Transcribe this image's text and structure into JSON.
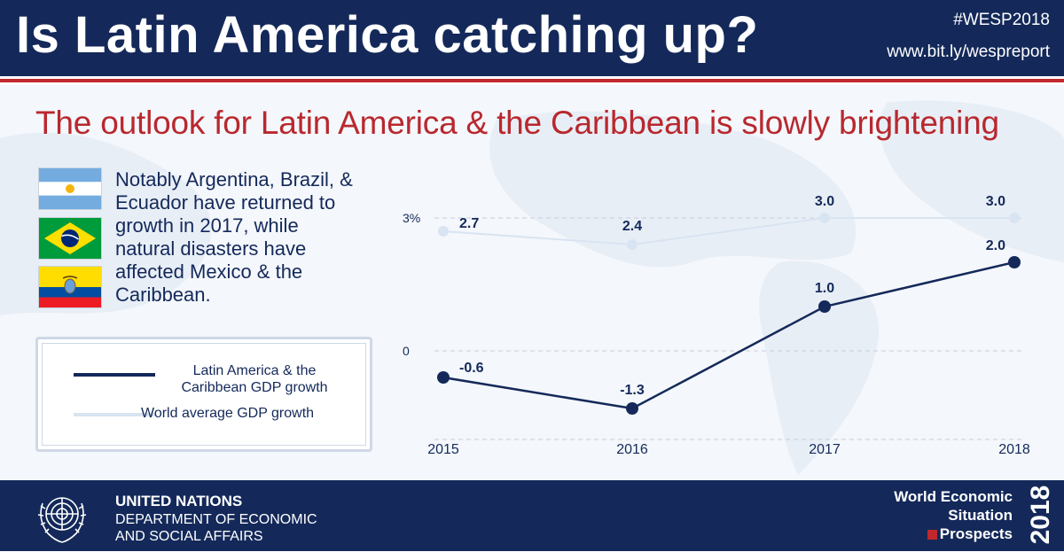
{
  "header": {
    "title": "Is Latin America catching up?",
    "hashtag": "#WESP2018",
    "url": "www.bit.ly/wespreport"
  },
  "subtitle": "The outlook for Latin America & the Caribbean is slowly brightening",
  "flags": [
    {
      "country": "Argentina",
      "icon": "argentina-flag-icon"
    },
    {
      "country": "Brazil",
      "icon": "brazil-flag-icon"
    },
    {
      "country": "Ecuador",
      "icon": "ecuador-flag-icon"
    }
  ],
  "note": "Notably Argentina, Brazil, & Ecuador have returned to growth in 2017, while natural disasters have affected Mexico & the Caribbean.",
  "legend": {
    "series1": "Latin America & the Caribbean GDP growth",
    "series2": "World average GDP growth"
  },
  "chart_data": {
    "type": "line",
    "x": [
      "2015",
      "2016",
      "2017",
      "2018"
    ],
    "series": [
      {
        "name": "Latin America & the Caribbean GDP growth",
        "values": [
          -0.6,
          -1.3,
          1.0,
          2.0
        ],
        "labels": [
          "-0.6",
          "-1.3",
          "1.0",
          "2.0"
        ],
        "color": "#14295a"
      },
      {
        "name": "World average GDP growth",
        "values": [
          2.7,
          2.4,
          3.0,
          3.0
        ],
        "labels": [
          "2.7",
          "2.4",
          "3.0",
          "3.0"
        ],
        "color": "#d9e4f2"
      }
    ],
    "y_ticks": [
      {
        "value": 3,
        "label": "3%"
      },
      {
        "value": 0,
        "label": "0"
      }
    ],
    "ylim": [
      -2,
      3.3
    ],
    "grid": "dashed horizontal at 3, 0 and -2",
    "title": "",
    "xlabel": "",
    "ylabel": ""
  },
  "footer": {
    "org_name": "UNITED NATIONS",
    "org_dept_line1": "DEPARTMENT OF ECONOMIC",
    "org_dept_line2": "AND SOCIAL AFFAIRS",
    "report_line1": "World Economic",
    "report_line2": "Situation",
    "report_line3": "Prospects",
    "report_year": "2018"
  }
}
